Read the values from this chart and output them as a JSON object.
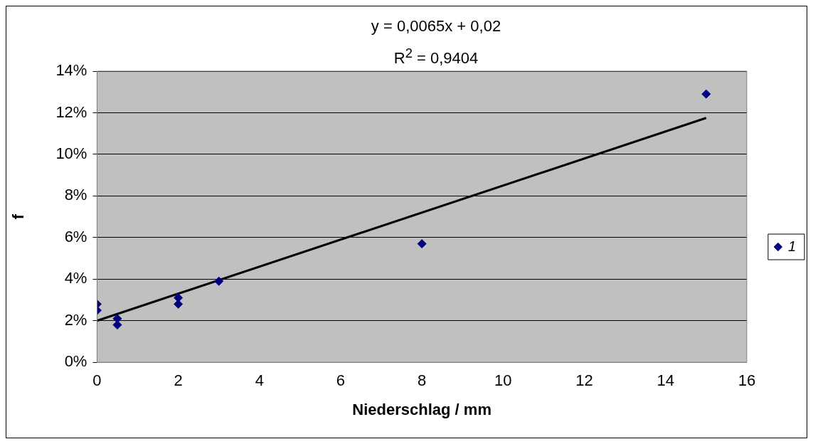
{
  "chart_data": {
    "type": "scatter",
    "xlabel": "Niederschlag / mm",
    "ylabel": "f",
    "annotations": [
      "y = 0,0065x + 0,02",
      "R$^{2}$ = 0,9404"
    ],
    "series": [
      {
        "name": "1",
        "color": "#000080",
        "marker": "diamond",
        "x": [
          0,
          0,
          0.5,
          0.5,
          2,
          2,
          3,
          8,
          15
        ],
        "values": [
          2.8,
          2.5,
          2.1,
          1.8,
          3.1,
          2.8,
          3.9,
          5.7,
          12.9
        ]
      },
      {
        "type": "line",
        "color": "#000000",
        "marker": "none",
        "line_style": "solid",
        "x": [
          0,
          15
        ],
        "values": [
          2,
          11.75
        ]
      }
    ],
    "xlim": [
      0,
      16
    ],
    "xticks": [
      0,
      2,
      4,
      6,
      8,
      10,
      12,
      14,
      16
    ],
    "ylim": [
      0,
      14
    ],
    "yticks": [
      {
        "value": 0,
        "label": "0%"
      },
      {
        "value": 2,
        "label": "2%"
      },
      {
        "value": 4,
        "label": "4%"
      },
      {
        "value": 6,
        "label": "6%"
      },
      {
        "value": 8,
        "label": "8%"
      },
      {
        "value": 10,
        "label": "10%"
      },
      {
        "value": 12,
        "label": "12%"
      },
      {
        "value": 14,
        "label": "14%"
      }
    ],
    "grid": "y",
    "legend": "right"
  }
}
